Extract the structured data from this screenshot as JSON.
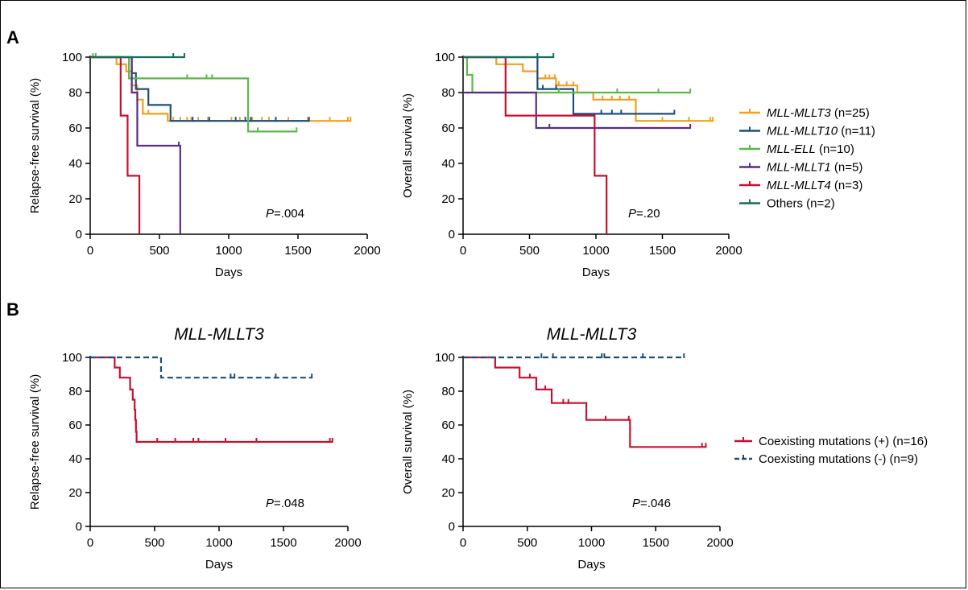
{
  "panels": {
    "A": "A",
    "B": "B"
  },
  "axis_labels": {
    "days": "Days",
    "rfs": "Relapse-free survival (%)",
    "os": "Overall survival (%)"
  },
  "legend_A": [
    {
      "italic": "MLL-MLLT3",
      "rest": " (n=25)",
      "color": "#f0a020"
    },
    {
      "italic": "MLL-MLLT10",
      "rest": " (n=11)",
      "color": "#1f4e79"
    },
    {
      "italic": "MLL-ELL",
      "rest": " (n=10)",
      "color": "#5cb848"
    },
    {
      "italic": "MLL-MLLT1",
      "rest": " (n=5)",
      "color": "#5a2d82"
    },
    {
      "italic": "MLL-MLLT4",
      "rest": " (n=3)",
      "color": "#c8102e"
    },
    {
      "italic": "",
      "rest": "Others (n=2)",
      "color": "#1a6b5a"
    }
  ],
  "legend_B": [
    {
      "text": "Coexisting mutations (+) (n=16)",
      "color": "#c8102e",
      "dashed": false
    },
    {
      "text": "Coexisting mutations (-) (n=9)",
      "color": "#1f4e79",
      "dashed": true
    }
  ],
  "chart_data": [
    {
      "type": "line",
      "subtype": "kaplan-meier",
      "panel": "A",
      "title": "",
      "xlabel": "Days",
      "ylabel": "Relapse-free survival (%)",
      "xlim": [
        0,
        2000
      ],
      "ylim": [
        0,
        100
      ],
      "xticks": [
        0,
        500,
        1000,
        1500,
        2000
      ],
      "yticks": [
        0,
        20,
        40,
        60,
        80,
        100
      ],
      "p_value": "P=.004",
      "series": [
        {
          "name": "MLL-MLLT3 (n=25)",
          "color": "#f0a020",
          "steps": [
            [
              0,
              100
            ],
            [
              190,
              96
            ],
            [
              260,
              92
            ],
            [
              300,
              84
            ],
            [
              340,
              76
            ],
            [
              380,
              68
            ],
            [
              560,
              64
            ],
            [
              1880,
              64
            ]
          ],
          "censors": [
            [
              300,
              88
            ],
            [
              420,
              68
            ],
            [
              600,
              64
            ],
            [
              650,
              64
            ],
            [
              700,
              64
            ],
            [
              730,
              64
            ],
            [
              780,
              64
            ],
            [
              850,
              64
            ],
            [
              1020,
              64
            ],
            [
              1080,
              64
            ],
            [
              1170,
              64
            ],
            [
              1240,
              64
            ],
            [
              1290,
              64
            ],
            [
              1430,
              64
            ],
            [
              1570,
              64
            ],
            [
              1730,
              64
            ],
            [
              1860,
              64
            ],
            [
              1880,
              64
            ]
          ]
        },
        {
          "name": "MLL-MLLT10 (n=11)",
          "color": "#1f4e79",
          "steps": [
            [
              0,
              100
            ],
            [
              300,
              91
            ],
            [
              330,
              82
            ],
            [
              420,
              73
            ],
            [
              580,
              64
            ],
            [
              1580,
              64
            ]
          ],
          "censors": [
            [
              740,
              64
            ],
            [
              860,
              64
            ],
            [
              1050,
              64
            ],
            [
              1120,
              64
            ],
            [
              1160,
              64
            ],
            [
              1340,
              64
            ],
            [
              1580,
              64
            ]
          ]
        },
        {
          "name": "MLL-ELL (n=10)",
          "color": "#5cb848",
          "steps": [
            [
              0,
              100
            ],
            [
              280,
              88
            ],
            [
              1130,
              88
            ],
            [
              1140,
              58
            ],
            [
              1490,
              58
            ]
          ],
          "censors": [
            [
              20,
              100
            ],
            [
              40,
              100
            ],
            [
              700,
              88
            ],
            [
              840,
              88
            ],
            [
              880,
              88
            ],
            [
              1210,
              58
            ],
            [
              1490,
              58
            ]
          ]
        },
        {
          "name": "MLL-MLLT1 (n=5)",
          "color": "#5a2d82",
          "steps": [
            [
              0,
              100
            ],
            [
              300,
              80
            ],
            [
              340,
              50
            ],
            [
              640,
              50
            ],
            [
              650,
              0
            ]
          ],
          "censors": [
            [
              640,
              50
            ]
          ]
        },
        {
          "name": "MLL-MLLT4 (n=3)",
          "color": "#c8102e",
          "steps": [
            [
              0,
              100
            ],
            [
              220,
              67
            ],
            [
              270,
              33
            ],
            [
              350,
              33
            ],
            [
              355,
              0
            ]
          ],
          "censors": []
        },
        {
          "name": "Others (n=2)",
          "color": "#1a6b5a",
          "steps": [
            [
              0,
              100
            ],
            [
              680,
              100
            ]
          ],
          "censors": [
            [
              600,
              100
            ],
            [
              680,
              100
            ]
          ]
        }
      ]
    },
    {
      "type": "line",
      "subtype": "kaplan-meier",
      "panel": "A",
      "title": "",
      "xlabel": "Days",
      "ylabel": "Overall survival (%)",
      "xlim": [
        0,
        2000
      ],
      "ylim": [
        0,
        100
      ],
      "xticks": [
        0,
        500,
        1000,
        1500,
        2000
      ],
      "yticks": [
        0,
        20,
        40,
        60,
        80,
        100
      ],
      "p_value": "P=.20",
      "series": [
        {
          "name": "MLL-MLLT3 (n=25)",
          "color": "#f0a020",
          "steps": [
            [
              0,
              100
            ],
            [
              250,
              96
            ],
            [
              450,
              92
            ],
            [
              560,
              88
            ],
            [
              700,
              84
            ],
            [
              860,
              80
            ],
            [
              980,
              76
            ],
            [
              1300,
              64
            ],
            [
              1880,
              64
            ]
          ],
          "censors": [
            [
              620,
              88
            ],
            [
              650,
              88
            ],
            [
              690,
              88
            ],
            [
              720,
              84
            ],
            [
              780,
              84
            ],
            [
              830,
              84
            ],
            [
              1050,
              76
            ],
            [
              1120,
              76
            ],
            [
              1180,
              76
            ],
            [
              1250,
              76
            ],
            [
              1500,
              64
            ],
            [
              1700,
              64
            ],
            [
              1860,
              64
            ],
            [
              1880,
              64
            ]
          ]
        },
        {
          "name": "MLL-MLLT10 (n=11)",
          "color": "#1f4e79",
          "steps": [
            [
              0,
              100
            ],
            [
              560,
              82
            ],
            [
              830,
              68
            ],
            [
              1590,
              68
            ]
          ],
          "censors": [
            [
              600,
              82
            ],
            [
              700,
              82
            ],
            [
              1040,
              68
            ],
            [
              1120,
              68
            ],
            [
              1190,
              68
            ],
            [
              1590,
              68
            ]
          ]
        },
        {
          "name": "MLL-ELL (n=10)",
          "color": "#5cb848",
          "steps": [
            [
              0,
              100
            ],
            [
              30,
              90
            ],
            [
              70,
              80
            ],
            [
              1710,
              80
            ]
          ],
          "censors": [
            [
              720,
              80
            ],
            [
              1160,
              80
            ],
            [
              1470,
              80
            ],
            [
              1710,
              80
            ]
          ]
        },
        {
          "name": "MLL-MLLT1 (n=5)",
          "color": "#5a2d82",
          "steps": [
            [
              0,
              80
            ],
            [
              540,
              80
            ],
            [
              550,
              60
            ],
            [
              1710,
              60
            ]
          ],
          "censors": [
            [
              650,
              60
            ],
            [
              1710,
              60
            ]
          ]
        },
        {
          "name": "MLL-MLLT4 (n=3)",
          "color": "#c8102e",
          "steps": [
            [
              0,
              100
            ],
            [
              320,
              67
            ],
            [
              990,
              33
            ],
            [
              1080,
              0
            ]
          ],
          "censors": []
        },
        {
          "name": "Others (n=2)",
          "color": "#1a6b5a",
          "steps": [
            [
              0,
              100
            ],
            [
              680,
              100
            ]
          ],
          "censors": [
            [
              560,
              100
            ],
            [
              680,
              100
            ]
          ]
        }
      ]
    },
    {
      "type": "line",
      "subtype": "kaplan-meier",
      "panel": "B",
      "title": "MLL-MLLT3",
      "xlabel": "Days",
      "ylabel": "Relapse-free survival (%)",
      "xlim": [
        0,
        2000
      ],
      "ylim": [
        0,
        100
      ],
      "xticks": [
        0,
        500,
        1000,
        1500,
        2000
      ],
      "yticks": [
        0,
        20,
        40,
        60,
        80,
        100
      ],
      "p_value": "P=.048",
      "series": [
        {
          "name": "Coexisting mutations (+) (n=16)",
          "color": "#c8102e",
          "dashed": false,
          "steps": [
            [
              0,
              100
            ],
            [
              190,
              94
            ],
            [
              230,
              88
            ],
            [
              310,
              81
            ],
            [
              330,
              75
            ],
            [
              345,
              69
            ],
            [
              350,
              63
            ],
            [
              355,
              56
            ],
            [
              360,
              50
            ],
            [
              1880,
              50
            ]
          ],
          "censors": [
            [
              520,
              50
            ],
            [
              660,
              50
            ],
            [
              800,
              50
            ],
            [
              840,
              50
            ],
            [
              1050,
              50
            ],
            [
              1290,
              50
            ],
            [
              1860,
              50
            ],
            [
              1880,
              50
            ]
          ]
        },
        {
          "name": "Coexisting mutations (-) (n=9)",
          "color": "#1f4e79",
          "dashed": true,
          "steps": [
            [
              0,
              100
            ],
            [
              540,
              100
            ],
            [
              550,
              88
            ],
            [
              1720,
              88
            ]
          ],
          "censors": [
            [
              1090,
              88
            ],
            [
              1120,
              88
            ],
            [
              1440,
              88
            ],
            [
              1720,
              88
            ]
          ]
        }
      ]
    },
    {
      "type": "line",
      "subtype": "kaplan-meier",
      "panel": "B",
      "title": "MLL-MLLT3",
      "xlabel": "Days",
      "ylabel": "Overall survival (%)",
      "xlim": [
        0,
        2000
      ],
      "ylim": [
        0,
        100
      ],
      "xticks": [
        0,
        500,
        1000,
        1500,
        2000
      ],
      "yticks": [
        0,
        20,
        40,
        60,
        80,
        100
      ],
      "p_value": "P=.046",
      "series": [
        {
          "name": "Coexisting mutations (+) (n=16)",
          "color": "#c8102e",
          "dashed": false,
          "steps": [
            [
              0,
              100
            ],
            [
              250,
              94
            ],
            [
              440,
              88
            ],
            [
              570,
              81
            ],
            [
              690,
              73
            ],
            [
              960,
              63
            ],
            [
              1300,
              47
            ],
            [
              1890,
              47
            ]
          ],
          "censors": [
            [
              520,
              88
            ],
            [
              640,
              81
            ],
            [
              780,
              73
            ],
            [
              820,
              73
            ],
            [
              1110,
              63
            ],
            [
              1290,
              63
            ],
            [
              1860,
              47
            ],
            [
              1890,
              47
            ]
          ]
        },
        {
          "name": "Coexisting mutations (-) (n=9)",
          "color": "#1f4e79",
          "dashed": true,
          "steps": [
            [
              0,
              100
            ],
            [
              1720,
              100
            ]
          ],
          "censors": [
            [
              610,
              100
            ],
            [
              700,
              100
            ],
            [
              1080,
              100
            ],
            [
              1100,
              100
            ],
            [
              1400,
              100
            ],
            [
              1720,
              100
            ]
          ]
        }
      ]
    }
  ]
}
